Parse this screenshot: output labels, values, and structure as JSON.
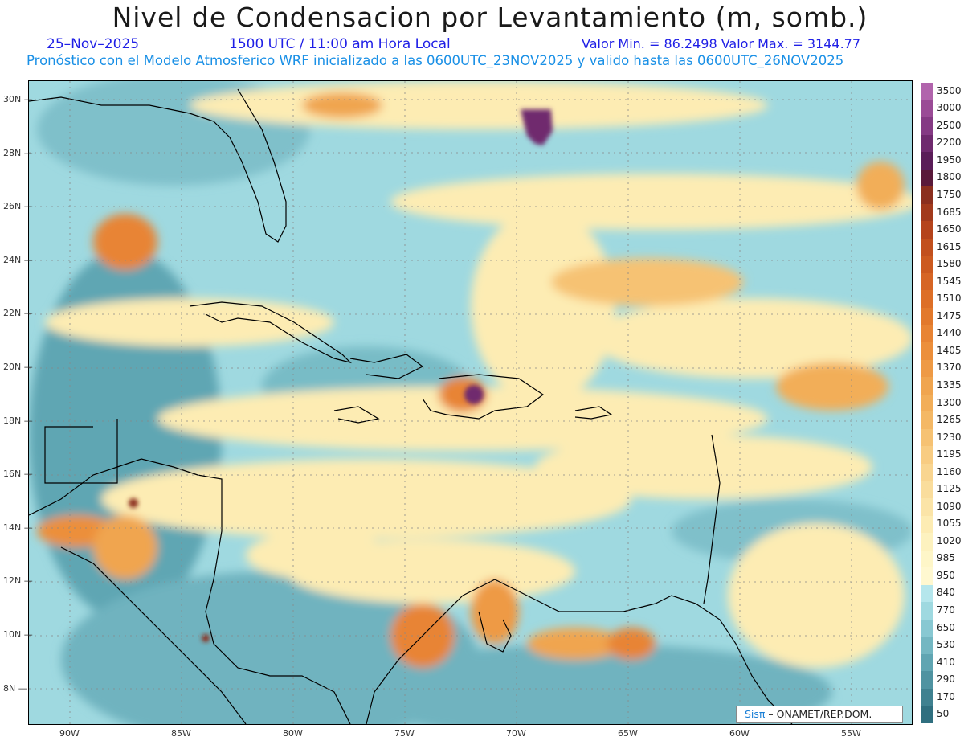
{
  "title": "Nivel de Condensacion por Levantamiento (m, somb.)",
  "date": "25–Nov–2025",
  "time_text": "1500 UTC / 11:00 am Hora Local",
  "minmax_text": "Valor Min. = 86.2498   Valor Max. = 3144.77",
  "model_text": "Pronóstico con el Modelo Atmosferico WRF inicializado a las 0600UTC_23NOV2025 y valido hasta las  0600UTC_26NOV2025",
  "credit": {
    "brand": "Sisπ",
    "org": " – ONAMET/REP.DOM."
  },
  "lat_labels": [
    "30N",
    "28N",
    "26N",
    "24N",
    "22N",
    "20N",
    "18N",
    "16N",
    "14N",
    "12N",
    "10N",
    "8N"
  ],
  "lon_labels": [
    "90W",
    "85W",
    "80W",
    "75W",
    "70W",
    "65W",
    "60W",
    "55W"
  ],
  "colorbar": {
    "labels": [
      "3500",
      "3000",
      "2500",
      "2200",
      "1950",
      "1800",
      "1750",
      "1685",
      "1650",
      "1615",
      "1580",
      "1545",
      "1510",
      "1475",
      "1440",
      "1405",
      "1370",
      "1335",
      "1300",
      "1265",
      "1230",
      "1195",
      "1160",
      "1125",
      "1090",
      "1055",
      "1020",
      "985",
      "950",
      "840",
      "770",
      "650",
      "530",
      "410",
      "290",
      "170",
      "50"
    ],
    "colors": [
      "#b164ac",
      "#9a4b96",
      "#853a84",
      "#6f2a6e",
      "#5a1d58",
      "#5a1a3a",
      "#8b2f1e",
      "#a23a1c",
      "#b5441c",
      "#c2501e",
      "#cc5a20",
      "#d66525",
      "#dd6f27",
      "#e2792c",
      "#e88434",
      "#ec8f3b",
      "#ee9a45",
      "#f0a54f",
      "#f2ae59",
      "#f4b865",
      "#f6c273",
      "#f8cc82",
      "#f9d590",
      "#fadd9c",
      "#fbe4a7",
      "#fdecb3",
      "#fdf2bf",
      "#fef6c8",
      "#fff8d0",
      "#b5e6ec",
      "#9fd9e0",
      "#88c8d2",
      "#74b7c2",
      "#60a5b2",
      "#4f93a1",
      "#3f8190",
      "#2f6f7f"
    ]
  }
}
